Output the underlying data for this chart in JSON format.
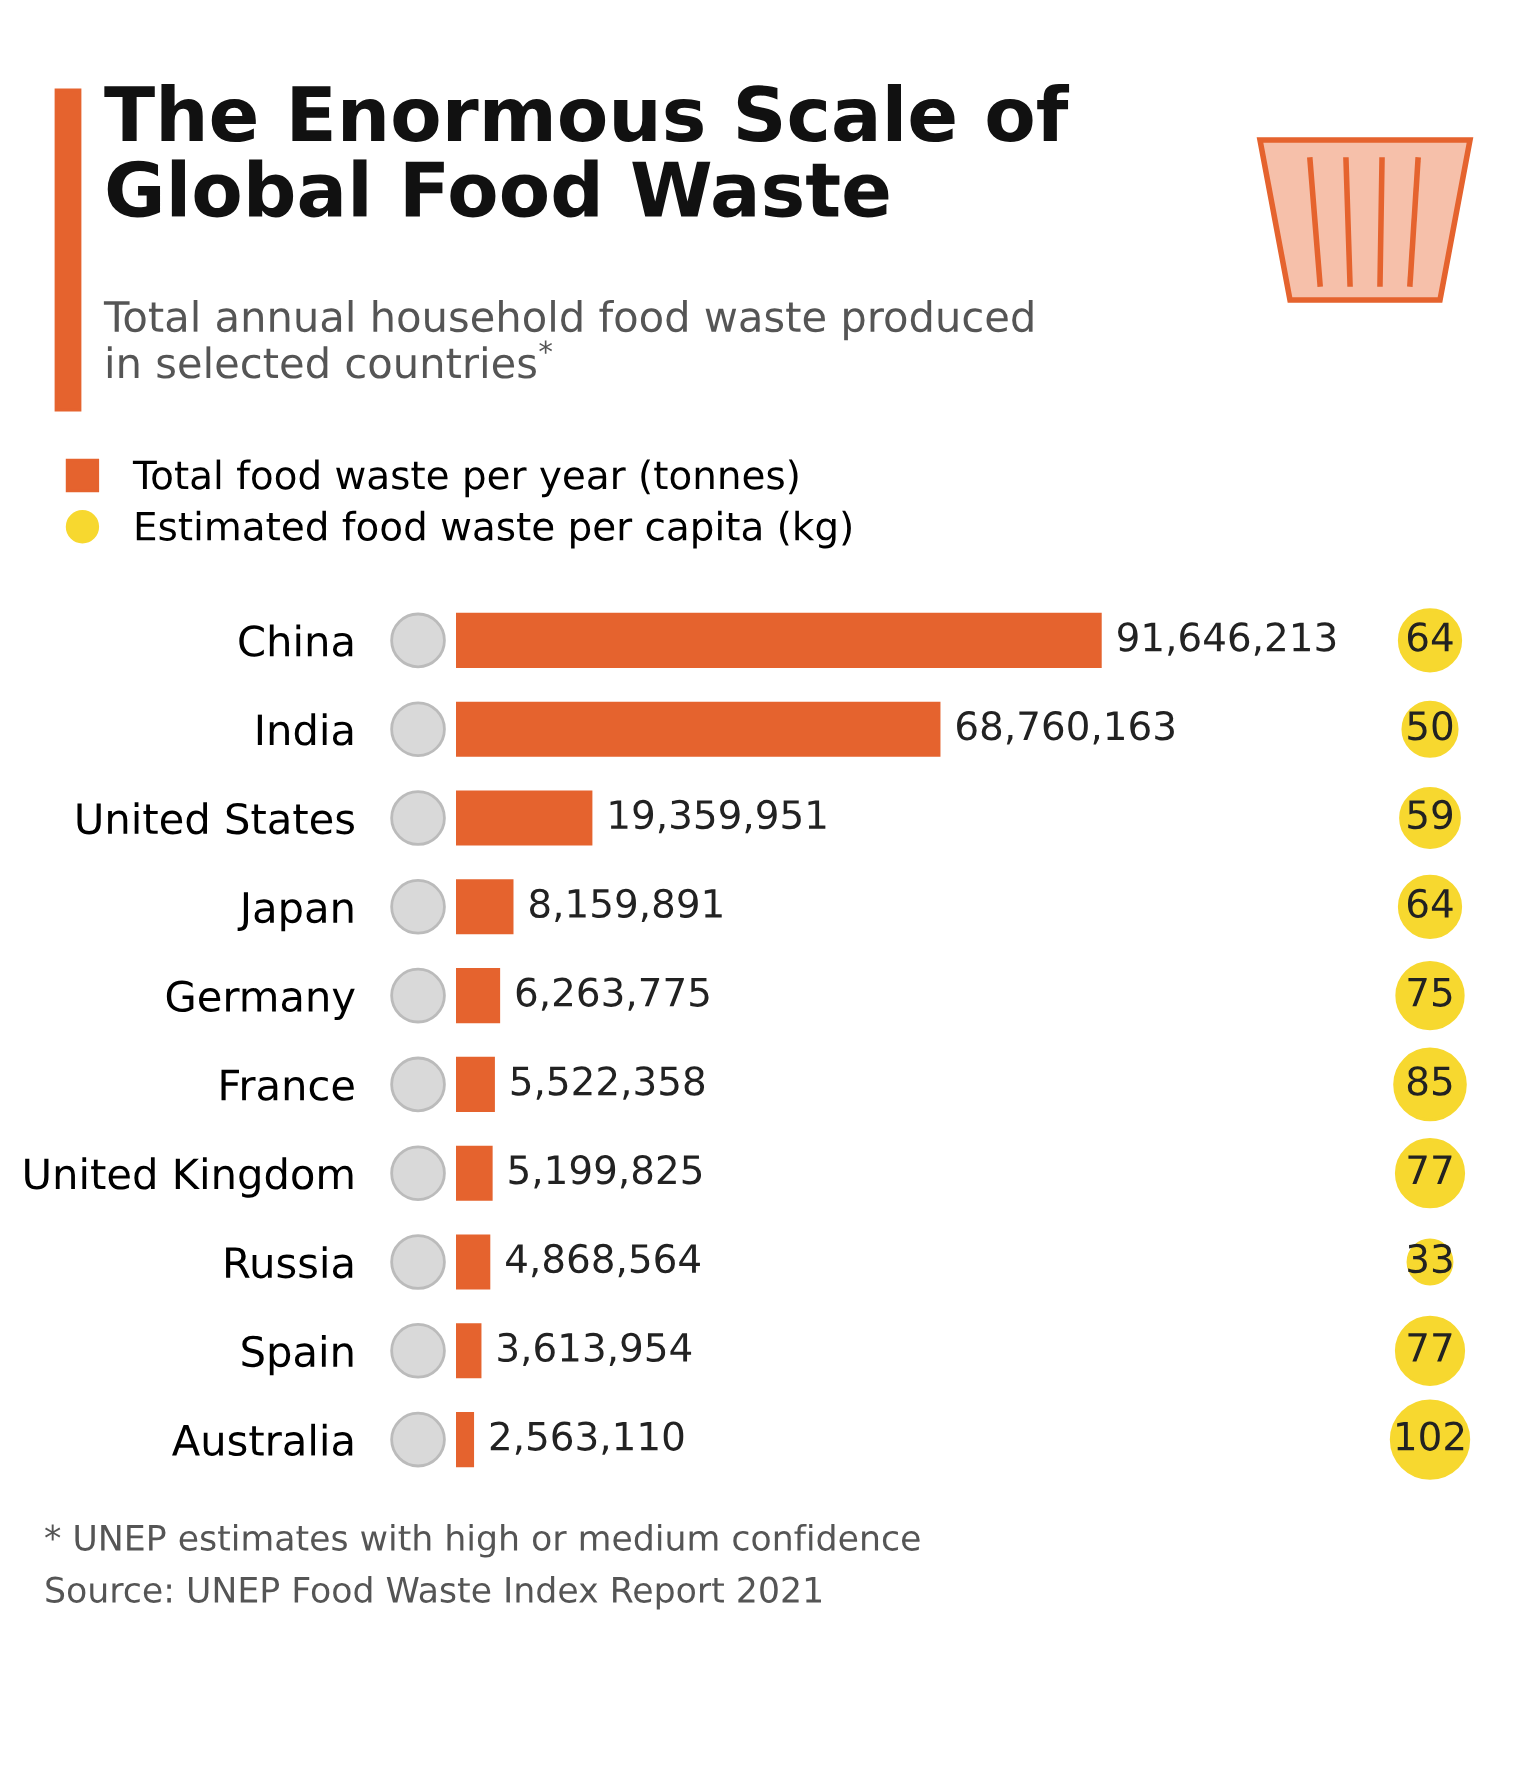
{
  "chart_data": [
    {
      "type": "bar",
      "orientation": "horizontal",
      "title": "The Enormous Scale of\nGlobal Food Waste",
      "subtitle": "Total annual household food waste produced\nin selected countries$^{*}$",
      "categories": [
        "China",
        "India",
        "United States",
        "Japan",
        "Germany",
        "France",
        "United Kingdom",
        "Russia",
        "Spain",
        "Australia"
      ],
      "series": [
        {
          "name": "Total food waste per year (tonnes)",
          "color": "#e5632e",
          "values": [
            91646213,
            68760163,
            19359951,
            8159891,
            6263775,
            5522358,
            5199825,
            4868564,
            3613954,
            2563110
          ],
          "value_labels": [
            "91,646,213",
            "68,760,163",
            "19,359,951",
            "8,159,891",
            "6,263,775",
            "5,522,358",
            "5,199,825",
            "4,868,564",
            "3,613,954",
            "2,563,110"
          ]
        }
      ],
      "legend": "top left",
      "annotations": [
        "* UNEP estimates with high or medium confidence",
        "Source: UNEP Food Waste Index Report 2021"
      ]
    },
    {
      "type": "other",
      "series": [
        {
          "name": "Estimated food waste per capita (kg)",
          "color": "#f7d82f",
          "values": [
            64,
            50,
            59,
            64,
            75,
            85,
            77,
            33,
            77,
            102
          ]
        }
      ],
      "data_labels": true
    }
  ]
}
